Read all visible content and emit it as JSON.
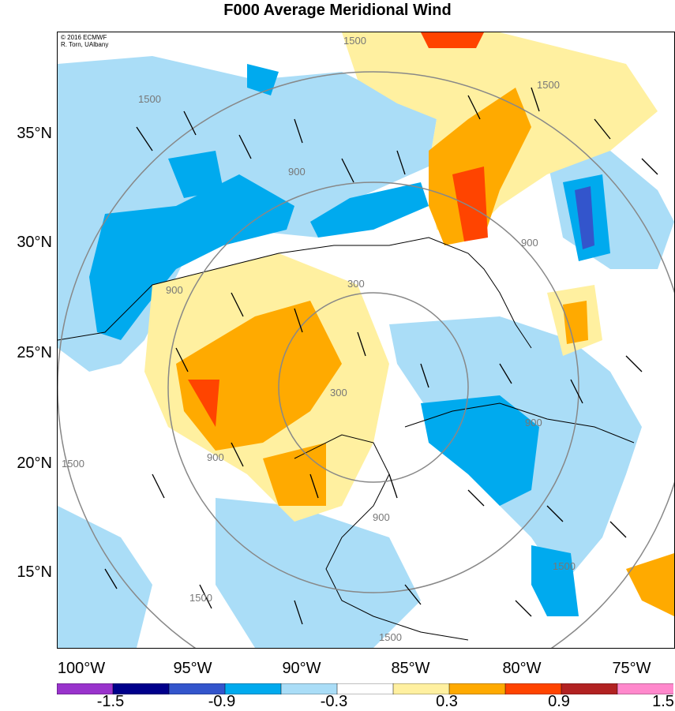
{
  "title": "F000 Average Meridional Wind",
  "credit": {
    "line1": "© 2016 ECMWF",
    "line2": "R. Torn, UAlbany"
  },
  "lat_labels": [
    "35°N",
    "30°N",
    "25°N",
    "20°N",
    "15°N"
  ],
  "lon_labels": [
    "100°W",
    "95°W",
    "90°W",
    "85°W",
    "80°W",
    "75°W"
  ],
  "contour_labels": [
    "1500",
    "1500",
    "1500",
    "900",
    "900",
    "900",
    "900",
    "900",
    "300",
    "300",
    "900",
    "1500",
    "1500",
    "1500",
    "1500"
  ],
  "colorbar": {
    "ticks": [
      "-1.5",
      "-0.9",
      "-0.3",
      "0.3",
      "0.9",
      "1.5"
    ],
    "colors": [
      "#9933cc",
      "#00008b",
      "#3355cc",
      "#00aaee",
      "#aaddf7",
      "#ffffff",
      "#fff0a0",
      "#ffaa00",
      "#ff4400",
      "#b22222",
      "#ff88cc"
    ]
  }
}
